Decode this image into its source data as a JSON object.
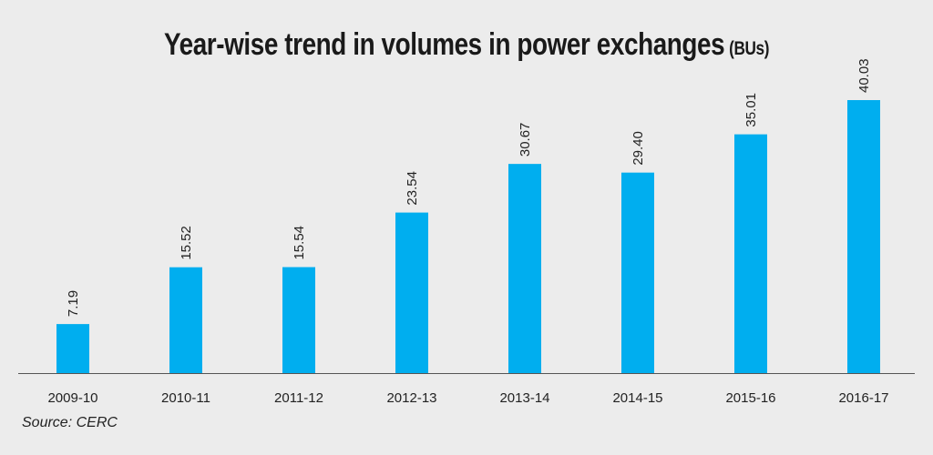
{
  "chart_data": {
    "type": "bar",
    "title": "Year-wise trend in volumes in power exchanges",
    "title_unit": "(BUs)",
    "categories": [
      "2009-10",
      "2010-11",
      "2011-12",
      "2012-13",
      "2013-14",
      "2014-15",
      "2015-16",
      "2016-17"
    ],
    "values": [
      7.19,
      15.52,
      15.54,
      23.54,
      30.67,
      29.4,
      35.01,
      40.03
    ],
    "value_labels": [
      "7.19",
      "15.52",
      "15.54",
      "23.54",
      "30.67",
      "29.40",
      "35.01",
      "40.03"
    ],
    "xlabel": "",
    "ylabel": "",
    "ylim": [
      0,
      40.03
    ],
    "grid": false,
    "bar_color": "#00aeef"
  },
  "source": "Source: CERC"
}
